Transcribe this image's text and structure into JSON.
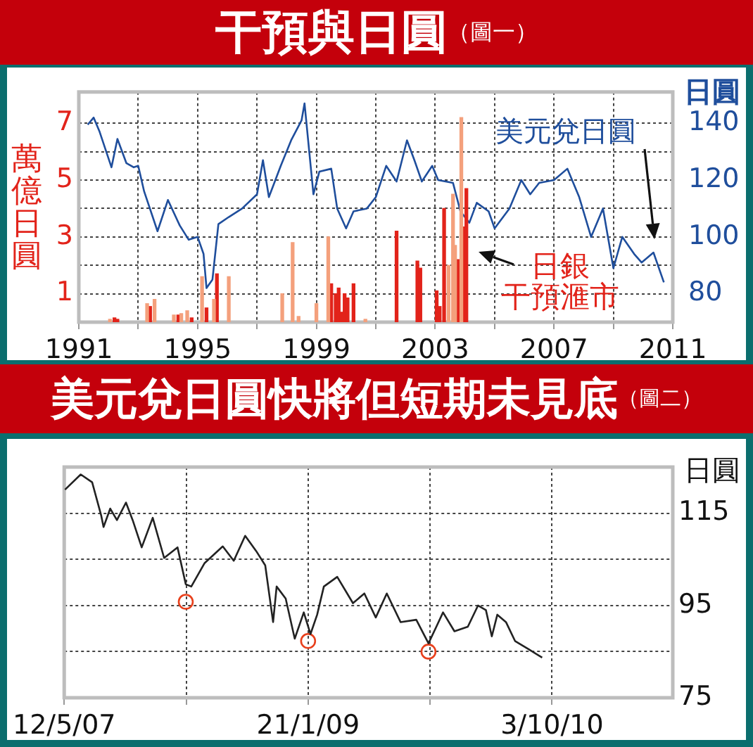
{
  "chart_data": [
    {
      "type": "bar",
      "title": "干預與日圓",
      "subtitle": "（圖一）",
      "ylabel": "萬億日圓",
      "y2label": "日圓",
      "annotations": [
        "日銀干預滙市"
      ],
      "xlim": [
        1991,
        2011
      ],
      "xticks": [
        1991,
        {
          "value": 1993,
          "label": null
        },
        1995,
        {
          "value": 1997,
          "label": null
        },
        1999,
        {
          "value": 2001,
          "label": null
        },
        2003,
        {
          "value": 2005,
          "label": null
        },
        2007,
        {
          "value": 2009,
          "label": null
        },
        2011
      ],
      "ylim": [
        0,
        8.1
      ],
      "yticks": [
        1,
        {
          "value": 2,
          "label": null
        },
        3,
        {
          "value": 4,
          "label": null
        },
        5,
        {
          "value": 6,
          "label": null
        },
        7
      ],
      "y2lim": [
        70,
        151
      ],
      "y2ticks": [
        80,
        100,
        120,
        140
      ],
      "grid": true,
      "series": [
        {
          "color": "#f4a07c",
          "x": [
            1992.05,
            1993.3,
            1993.55,
            1994.2,
            1994.45,
            1994.65,
            1995.15,
            1995.55,
            1996.05,
            1997.85,
            1998.2,
            1998.4,
            1999.0,
            1999.4,
            2000.65,
            2003.45,
            2003.6,
            2003.67,
            2003.88
          ],
          "values": [
            0.1,
            0.65,
            0.8,
            0.25,
            0.3,
            0.4,
            1.6,
            0.8,
            1.6,
            1.0,
            2.8,
            0.2,
            0.65,
            3.0,
            0.1,
            2.0,
            4.5,
            2.7,
            7.2
          ]
        },
        {
          "color": "#e2231a",
          "x": [
            1992.2,
            1992.3,
            1993.4,
            1994.35,
            1994.8,
            1995.3,
            1995.65,
            1999.5,
            1999.65,
            1999.75,
            1999.85,
            1999.95,
            2000.05,
            2000.25,
            2001.7,
            2002.4,
            2002.5,
            2003.05,
            2003.15,
            2003.3,
            2003.78,
            2003.97,
            2004.05
          ],
          "values": [
            0.15,
            0.1,
            0.55,
            0.25,
            0.15,
            0.5,
            1.7,
            1.35,
            1.0,
            1.2,
            0.35,
            1.0,
            0.85,
            1.35,
            3.2,
            2.15,
            1.9,
            1.1,
            0.55,
            4.0,
            2.2,
            3.35,
            4.7
          ]
        },
        {
          "type": "line",
          "name": "美元兌日圓",
          "axis": "y2",
          "color": "#1f4e9c",
          "x": [
            1991.3,
            1991.5,
            1991.7,
            1992.1,
            1992.3,
            1992.6,
            1992.85,
            1993.0,
            1993.2,
            1993.65,
            1994.0,
            1994.4,
            1994.7,
            1995.0,
            1995.2,
            1995.3,
            1995.5,
            1995.7,
            1996.05,
            1996.5,
            1997.0,
            1997.2,
            1997.4,
            1997.8,
            1998.15,
            1998.5,
            1998.6,
            1998.9,
            1999.1,
            1999.5,
            1999.7,
            2000.0,
            2000.25,
            2000.7,
            2001.0,
            2001.35,
            2001.7,
            2002.05,
            2002.3,
            2002.55,
            2002.9,
            2003.1,
            2003.6,
            2003.85,
            2004.15,
            2004.4,
            2004.8,
            2005.0,
            2005.5,
            2005.9,
            2006.2,
            2006.5,
            2007.0,
            2007.45,
            2007.85,
            2008.25,
            2008.65,
            2009.0,
            2009.3,
            2009.7,
            2009.95,
            2010.35,
            2010.7
          ],
          "values": [
            139.5,
            142,
            137,
            124.5,
            134.5,
            126,
            124.5,
            125,
            116,
            102,
            113,
            104,
            99,
            100,
            94,
            82,
            85,
            104.5,
            107,
            110,
            115,
            127,
            114,
            125,
            134,
            141,
            147,
            115,
            123,
            124,
            110,
            103,
            109,
            110,
            114,
            125,
            119.5,
            134,
            127,
            119.5,
            125,
            120,
            119,
            109,
            105,
            112,
            109,
            103,
            110,
            120,
            115,
            119,
            120,
            124,
            114,
            100,
            110,
            89,
            100,
            94,
            91,
            94.5,
            84
          ]
        }
      ]
    },
    {
      "type": "line",
      "title": "美元兌日圓快將但短期未見底",
      "subtitle": "（圖二）",
      "ylabel": "日圓",
      "xlim": [
        "2007-05-12",
        "2011-08-06"
      ],
      "xticks": [
        {
          "value": "2007-05-12",
          "label": "12/5/07"
        },
        {
          "value": "2008-03-17",
          "label": null
        },
        {
          "value": "2009-01-21",
          "label": "21/1/09"
        },
        {
          "value": "2009-11-27",
          "label": null
        },
        {
          "value": "2010-10-03",
          "label": "3/10/10"
        }
      ],
      "ylim": [
        75,
        125
      ],
      "yticks": [
        75,
        {
          "value": 85,
          "label": null
        },
        95,
        {
          "value": 105,
          "label": null
        },
        115
      ],
      "grid": true,
      "series": [
        {
          "color": "#222222",
          "x": [
            "2007-05-14",
            "2007-06-23",
            "2007-07-22",
            "2007-08-14",
            "2007-08-20",
            "2007-09-06",
            "2007-09-23",
            "2007-10-16",
            "2007-11-02",
            "2007-11-25",
            "2007-12-23",
            "2008-01-21",
            "2008-02-24",
            "2008-03-16",
            "2008-03-30",
            "2008-05-03",
            "2008-06-18",
            "2008-07-16",
            "2008-08-14",
            "2008-09-11",
            "2008-10-04",
            "2008-10-24",
            "2008-11-02",
            "2008-11-25",
            "2008-12-18",
            "2009-01-10",
            "2009-01-27",
            "2009-02-13",
            "2009-03-02",
            "2009-04-05",
            "2009-05-15",
            "2009-06-13",
            "2009-07-12",
            "2009-08-09",
            "2009-09-13",
            "2009-10-23",
            "2009-11-23",
            "2009-12-13",
            "2009-12-30",
            "2010-01-28",
            "2010-03-03",
            "2010-03-29",
            "2010-04-18",
            "2010-05-03",
            "2010-05-17",
            "2010-06-08",
            "2010-07-01",
            "2010-08-05",
            "2010-09-08"
          ],
          "values": [
            120.1,
            123.4,
            121.7,
            114.5,
            112,
            116,
            113.5,
            117.3,
            113.5,
            107.6,
            114,
            105.3,
            107.6,
            99.6,
            99.1,
            104.2,
            107.8,
            104.7,
            110.1,
            106.8,
            103.7,
            91.4,
            99.1,
            96.5,
            87.8,
            93.5,
            88.8,
            93,
            99.1,
            101.2,
            95.5,
            97.6,
            92.4,
            97.6,
            91.4,
            91.9,
            86.8,
            90.4,
            93.5,
            89.4,
            90.4,
            95,
            94,
            88.3,
            93,
            91.4,
            87.3,
            85.5,
            83.7
          ]
        },
        {
          "type": "scatter",
          "marker": "circle",
          "color": "#e8401c",
          "x": [
            "2008-03-16",
            "2009-01-21",
            "2009-11-23"
          ],
          "values": [
            95.8,
            87.3,
            85
          ]
        }
      ]
    }
  ]
}
